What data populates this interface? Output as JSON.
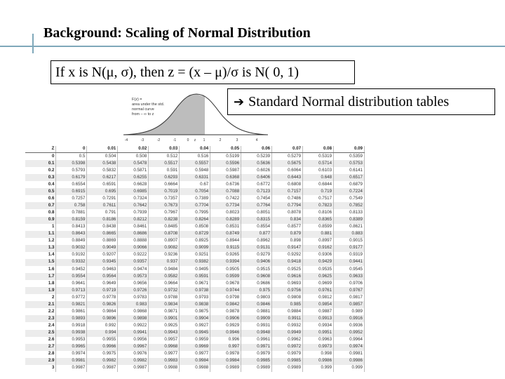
{
  "slide": {
    "title": "Background: Scaling of Normal Distribution",
    "formula": "If x is N(μ, σ), then z = (x – μ)/σ is N( 0, 1)",
    "callout_text": "Standard Normal distribution tables",
    "callout_icon": "right-arrow-icon",
    "accent_color": "#7fa8ba"
  },
  "figure": {
    "annotation": [
      "F(z) =",
      "area under the std.",
      "normal curve",
      "from – ∞ to z"
    ],
    "axis_ticks": [
      "-4",
      "-3",
      "-2",
      "-1",
      "0",
      "z",
      "1",
      "2",
      "3",
      "4"
    ],
    "shade_color": "#bdbdbd"
  },
  "table": {
    "headers": [
      "Z",
      "0",
      "0.01",
      "0.02",
      "0.03",
      "0.04",
      "0.05",
      "0.06",
      "0.07",
      "0.08",
      "0.09"
    ],
    "rows": [
      [
        "0",
        "0.5",
        "0.504",
        "0.508",
        "0.512",
        "0.516",
        "0.5199",
        "0.5239",
        "0.5279",
        "0.5319",
        "0.5359"
      ],
      [
        "0.1",
        "0.5398",
        "0.5438",
        "0.5478",
        "0.5517",
        "0.5557",
        "0.5596",
        "0.5636",
        "0.5675",
        "0.5714",
        "0.5753"
      ],
      [
        "0.2",
        "0.5793",
        "0.5832",
        "0.5871",
        "0.591",
        "0.5948",
        "0.5987",
        "0.6026",
        "0.6064",
        "0.6103",
        "0.6141"
      ],
      [
        "0.3",
        "0.6179",
        "0.6217",
        "0.6255",
        "0.6293",
        "0.6331",
        "0.6368",
        "0.6406",
        "0.6443",
        "0.648",
        "0.6517"
      ],
      [
        "0.4",
        "0.6554",
        "0.6591",
        "0.6628",
        "0.6664",
        "0.67",
        "0.6736",
        "0.6772",
        "0.6808",
        "0.6844",
        "0.6879"
      ],
      [
        "0.5",
        "0.6915",
        "0.695",
        "0.6985",
        "0.7019",
        "0.7054",
        "0.7088",
        "0.7123",
        "0.7157",
        "0.719",
        "0.7224"
      ],
      [
        "0.6",
        "0.7257",
        "0.7291",
        "0.7324",
        "0.7357",
        "0.7389",
        "0.7422",
        "0.7454",
        "0.7486",
        "0.7517",
        "0.7549"
      ],
      [
        "0.7",
        "0.758",
        "0.7611",
        "0.7642",
        "0.7673",
        "0.7704",
        "0.7734",
        "0.7764",
        "0.7794",
        "0.7823",
        "0.7852"
      ],
      [
        "0.8",
        "0.7881",
        "0.791",
        "0.7939",
        "0.7967",
        "0.7995",
        "0.8023",
        "0.8051",
        "0.8078",
        "0.8106",
        "0.8133"
      ],
      [
        "0.9",
        "0.8159",
        "0.8186",
        "0.8212",
        "0.8238",
        "0.8264",
        "0.8289",
        "0.8315",
        "0.834",
        "0.8365",
        "0.8389"
      ],
      [
        "1",
        "0.8413",
        "0.8438",
        "0.8461",
        "0.8485",
        "0.8508",
        "0.8531",
        "0.8554",
        "0.8577",
        "0.8599",
        "0.8621"
      ],
      [
        "1.1",
        "0.8643",
        "0.8665",
        "0.8686",
        "0.8708",
        "0.8729",
        "0.8749",
        "0.877",
        "0.879",
        "0.881",
        "0.883"
      ],
      [
        "1.2",
        "0.8849",
        "0.8869",
        "0.8888",
        "0.8907",
        "0.8925",
        "0.8944",
        "0.8962",
        "0.898",
        "0.8997",
        "0.9015"
      ],
      [
        "1.3",
        "0.9032",
        "0.9049",
        "0.9066",
        "0.9082",
        "0.9099",
        "0.9115",
        "0.9131",
        "0.9147",
        "0.9162",
        "0.9177"
      ],
      [
        "1.4",
        "0.9192",
        "0.9207",
        "0.9222",
        "0.9236",
        "0.9251",
        "0.9265",
        "0.9279",
        "0.9292",
        "0.9306",
        "0.9319"
      ],
      [
        "1.5",
        "0.9332",
        "0.9345",
        "0.9357",
        "0.937",
        "0.9382",
        "0.9394",
        "0.9406",
        "0.9418",
        "0.9429",
        "0.9441"
      ],
      [
        "1.6",
        "0.9452",
        "0.9463",
        "0.9474",
        "0.9484",
        "0.9495",
        "0.9505",
        "0.9515",
        "0.9525",
        "0.9535",
        "0.9545"
      ],
      [
        "1.7",
        "0.9554",
        "0.9564",
        "0.9573",
        "0.9582",
        "0.9591",
        "0.9599",
        "0.9608",
        "0.9616",
        "0.9625",
        "0.9633"
      ],
      [
        "1.8",
        "0.9641",
        "0.9649",
        "0.9656",
        "0.9664",
        "0.9671",
        "0.9678",
        "0.9686",
        "0.9693",
        "0.9699",
        "0.9706"
      ],
      [
        "1.9",
        "0.9713",
        "0.9719",
        "0.9726",
        "0.9732",
        "0.9738",
        "0.9744",
        "0.975",
        "0.9756",
        "0.9761",
        "0.9767"
      ],
      [
        "2",
        "0.9772",
        "0.9778",
        "0.9783",
        "0.9788",
        "0.9793",
        "0.9798",
        "0.9803",
        "0.9808",
        "0.9812",
        "0.9817"
      ],
      [
        "2.1",
        "0.9821",
        "0.9826",
        "0.983",
        "0.9834",
        "0.9838",
        "0.9842",
        "0.9846",
        "0.985",
        "0.9854",
        "0.9857"
      ],
      [
        "2.2",
        "0.9861",
        "0.9864",
        "0.9868",
        "0.9871",
        "0.9875",
        "0.9878",
        "0.9881",
        "0.9884",
        "0.9887",
        "0.989"
      ],
      [
        "2.3",
        "0.9893",
        "0.9896",
        "0.9898",
        "0.9901",
        "0.9904",
        "0.9906",
        "0.9909",
        "0.9911",
        "0.9913",
        "0.9916"
      ],
      [
        "2.4",
        "0.9918",
        "0.992",
        "0.9922",
        "0.9925",
        "0.9927",
        "0.9929",
        "0.9931",
        "0.9932",
        "0.9934",
        "0.9936"
      ],
      [
        "2.5",
        "0.9938",
        "0.994",
        "0.9941",
        "0.9943",
        "0.9945",
        "0.9946",
        "0.9948",
        "0.9949",
        "0.9951",
        "0.9952"
      ],
      [
        "2.6",
        "0.9953",
        "0.9955",
        "0.9956",
        "0.9957",
        "0.9959",
        "0.996",
        "0.9961",
        "0.9962",
        "0.9963",
        "0.9964"
      ],
      [
        "2.7",
        "0.9965",
        "0.9966",
        "0.9967",
        "0.9968",
        "0.9969",
        "0.997",
        "0.9971",
        "0.9972",
        "0.9973",
        "0.9974"
      ],
      [
        "2.8",
        "0.9974",
        "0.9975",
        "0.9976",
        "0.9977",
        "0.9977",
        "0.9978",
        "0.9979",
        "0.9979",
        "0.998",
        "0.9981"
      ],
      [
        "2.9",
        "0.9981",
        "0.9982",
        "0.9982",
        "0.9983",
        "0.9984",
        "0.9984",
        "0.9985",
        "0.9985",
        "0.9986",
        "0.9986"
      ],
      [
        "3",
        "0.9987",
        "0.9987",
        "0.9987",
        "0.9988",
        "0.9988",
        "0.9989",
        "0.9989",
        "0.9989",
        "0.999",
        "0.999"
      ]
    ]
  }
}
